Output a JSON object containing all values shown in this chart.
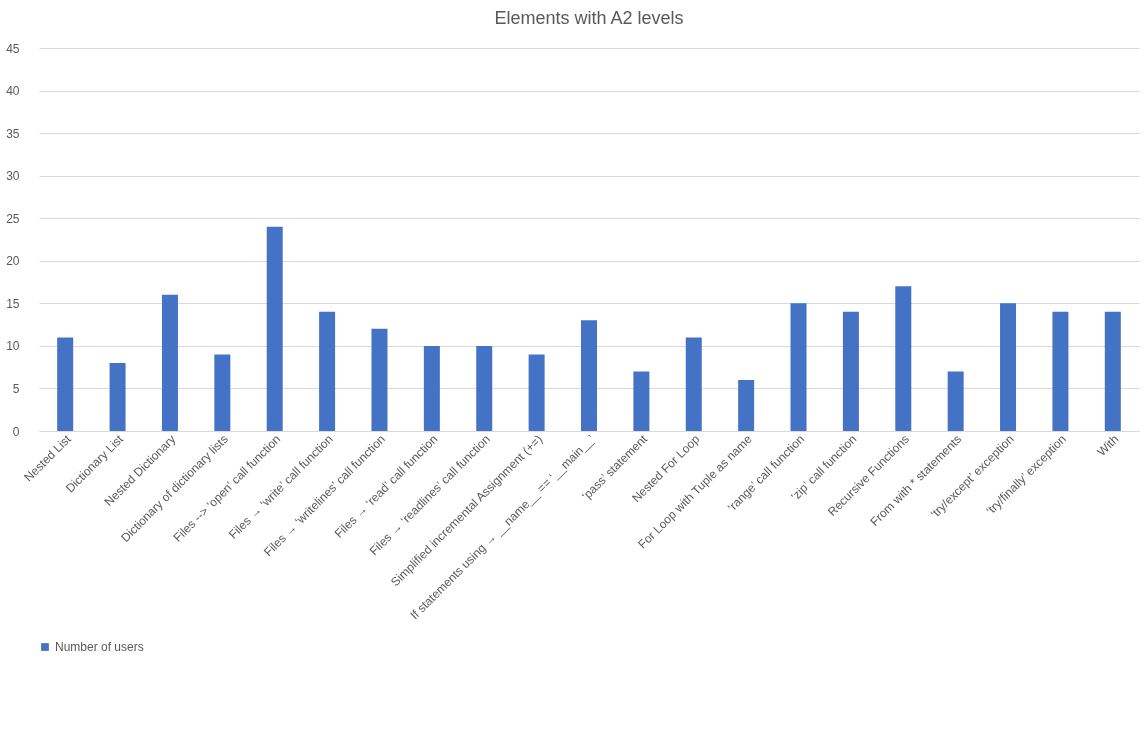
{
  "chart_data": {
    "type": "bar",
    "title": "Elements with A2 levels",
    "categories": [
      "Nested List",
      "Dictionary List",
      "Nested Dictionary",
      "Dictionary of dictionary lists",
      "Files --> ‘open’ call function",
      "Files → ‘write’ call function",
      "Files → ‘writelines’ call function",
      "Files → ‘read’ call function",
      "Files → ‘readlines’ call function",
      "Simplified incremental Assignment (+=)",
      "If statements using → __name__ == ‘__main__’",
      "‘pass’ statement",
      "Nested For Loop",
      "For Loop with Tuple as name",
      "‘range’ call function",
      "‘zip’ call function",
      "Recursive Functions",
      "From with * statements",
      "‘try/except’ exception",
      "‘try/finally’ exception",
      "With"
    ],
    "series": [
      {
        "name": "Number of users",
        "color": "#4472c4",
        "values": [
          11,
          8,
          16,
          9,
          24,
          14,
          12,
          10,
          10,
          9,
          13,
          7,
          11,
          6,
          15,
          14,
          17,
          7,
          15,
          14,
          14
        ]
      }
    ],
    "ylim": [
      0,
      45
    ],
    "yticks": [
      0,
      5,
      10,
      15,
      20,
      25,
      30,
      35,
      40,
      45
    ],
    "grid": "y",
    "legend": "bottom"
  }
}
